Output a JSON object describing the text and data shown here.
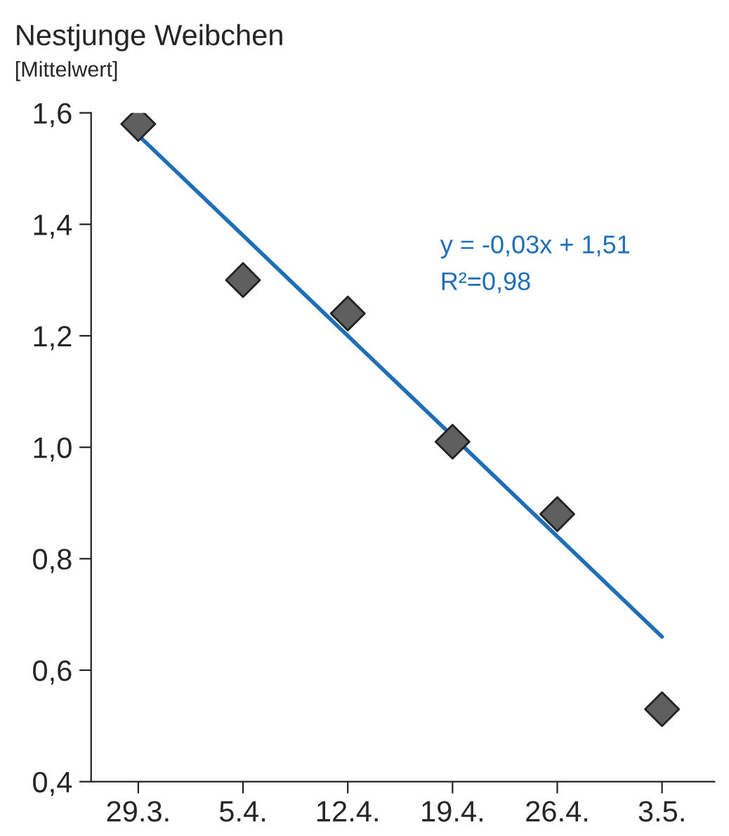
{
  "chart_data": {
    "type": "scatter",
    "title": "Nestjunge Weibchen",
    "ylabel": "[Mittelwert]",
    "categories": [
      "29.3.",
      "5.4.",
      "12.4.",
      "19.4.",
      "26.4.",
      "3.5."
    ],
    "series": [
      {
        "color": "#5f5f5f",
        "marker": "diamond",
        "values": [
          1.58,
          1.3,
          1.24,
          1.01,
          0.88,
          0.53
        ]
      },
      {
        "type": "line",
        "marker": "none",
        "color": "#1f6fb8",
        "x": [
          "29.3.",
          "3.5."
        ],
        "values": [
          1.56,
          0.66
        ]
      }
    ],
    "annotations": [
      "y = -0,03x + 1,51",
      "R²=0,98"
    ],
    "ylim": [
      0.4,
      1.6
    ],
    "yticks": [
      {
        "value": 0.4,
        "label": "0,4"
      },
      {
        "value": 0.6,
        "label": "0,6"
      },
      {
        "value": 0.8,
        "label": "0,8"
      },
      {
        "value": 1.0,
        "label": "1,0"
      },
      {
        "value": 1.2,
        "label": "1,2"
      },
      {
        "value": 1.4,
        "label": "1,4"
      },
      {
        "value": 1.6,
        "label": "1,6"
      }
    ],
    "grid": false,
    "legend": false
  }
}
